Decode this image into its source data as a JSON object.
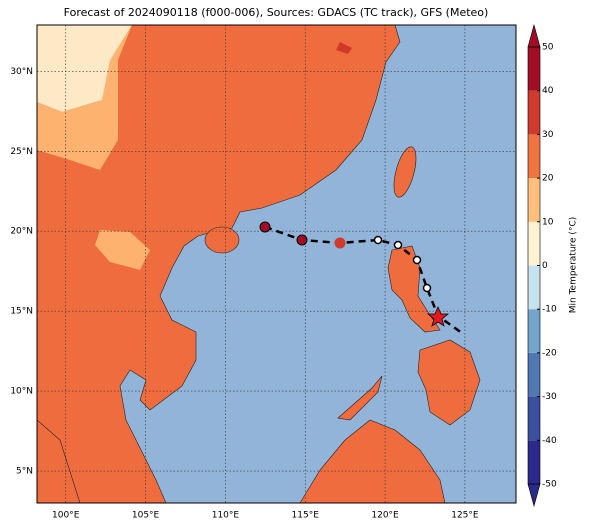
{
  "title": "Forecast of 2024090118 (f000-006), Sources: GDACS (TC track), GFS (Meteo)",
  "map": {
    "xlim": [
      98.2,
      128.2
    ],
    "ylim": [
      3,
      32.9
    ],
    "xticks": [
      {
        "value": 100,
        "label": "100°E"
      },
      {
        "value": 105,
        "label": "105°E"
      },
      {
        "value": 110,
        "label": "110°E"
      },
      {
        "value": 115,
        "label": "115°E"
      },
      {
        "value": 120,
        "label": "120°E"
      },
      {
        "value": 125,
        "label": "125°E"
      }
    ],
    "yticks": [
      {
        "value": 5,
        "label": "5°N"
      },
      {
        "value": 10,
        "label": "10°N"
      },
      {
        "value": 15,
        "label": "15°N"
      },
      {
        "value": 20,
        "label": "20°N"
      },
      {
        "value": 25,
        "label": "25°N"
      },
      {
        "value": 30,
        "label": "30°N"
      }
    ]
  },
  "colorbar": {
    "label": "Min Temperature (°C)",
    "lim": [
      -50,
      50
    ],
    "ticks": [
      -50,
      -40,
      -30,
      -20,
      -10,
      0,
      10,
      20,
      30,
      40,
      50
    ],
    "colors": [
      "#2b2a8c",
      "#3b4f9f",
      "#5079b3",
      "#74a6cc",
      "#c6e2ee",
      "#fff2d2",
      "#fdbf7b",
      "#f0743f",
      "#cf3a2c",
      "#a00d25"
    ]
  }
}
